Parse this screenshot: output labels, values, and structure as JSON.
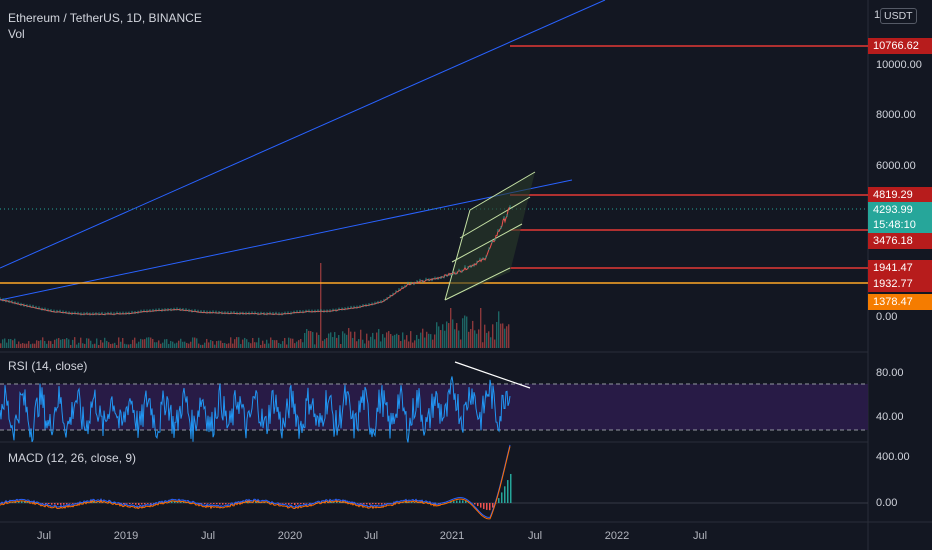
{
  "header": {
    "symbol_line": "Ethereum / TetherUS, 1D, BINANCE",
    "volume_label": "Vol",
    "currency_badge": "USDT",
    "currency_prefix": "1"
  },
  "price_axis": {
    "ticks": [
      "10000.00",
      "8000.00",
      "6000.00",
      "0.00"
    ]
  },
  "price_labels": [
    {
      "text": "10766.62",
      "bg": "#b71c1c"
    },
    {
      "text": "4819.29",
      "bg": "#b71c1c"
    },
    {
      "text": "4293.99",
      "bg": "#26a69a"
    },
    {
      "text": "15:48:10",
      "bg": "#26a69a"
    },
    {
      "text": "3476.18",
      "bg": "#b71c1c"
    },
    {
      "text": "1941.47",
      "bg": "#b71c1c"
    },
    {
      "text": "1932.77",
      "bg": "#b71c1c"
    },
    {
      "text": "1378.47",
      "bg": "#f57c00"
    }
  ],
  "rsi": {
    "title": "RSI (14, close)",
    "ticks": [
      "80.00",
      "40.00"
    ]
  },
  "macd": {
    "title": "MACD (12, 26, close, 9)",
    "ticks": [
      "400.00",
      "0.00"
    ]
  },
  "time_axis": {
    "labels": [
      "Jul",
      "2019",
      "Jul",
      "2020",
      "Jul",
      "2021",
      "Jul",
      "2022",
      "Jul"
    ]
  },
  "colors": {
    "background": "#131722",
    "candle_up": "#26a69a",
    "candle_down": "#ef5350",
    "trend_line": "#2962ff",
    "horizontal_red": "#e53935",
    "horizontal_orange": "#ffa726",
    "rsi_line": "#2196f3",
    "rsi_band": "#2b1c4a"
  },
  "chart_data": {
    "type": "line",
    "title": "Ethereum / TetherUS, 1D, BINANCE",
    "x": [
      "2018-05",
      "2018-07",
      "2018-09",
      "2018-11",
      "2019-01",
      "2019-03",
      "2019-05",
      "2019-07",
      "2019-09",
      "2019-11",
      "2020-01",
      "2020-03",
      "2020-05",
      "2020-07",
      "2020-09",
      "2020-11",
      "2021-01",
      "2021-02",
      "2021-03",
      "2021-04",
      "2021-05"
    ],
    "series": [
      {
        "name": "ETHUSDT",
        "values": [
          700,
          450,
          230,
          120,
          110,
          140,
          250,
          290,
          180,
          150,
          130,
          110,
          210,
          240,
          380,
          600,
          1300,
          1500,
          1800,
          2300,
          4293.99
        ]
      }
    ],
    "ylim": [
      0,
      11000
    ],
    "grid": false,
    "legend": "none"
  }
}
